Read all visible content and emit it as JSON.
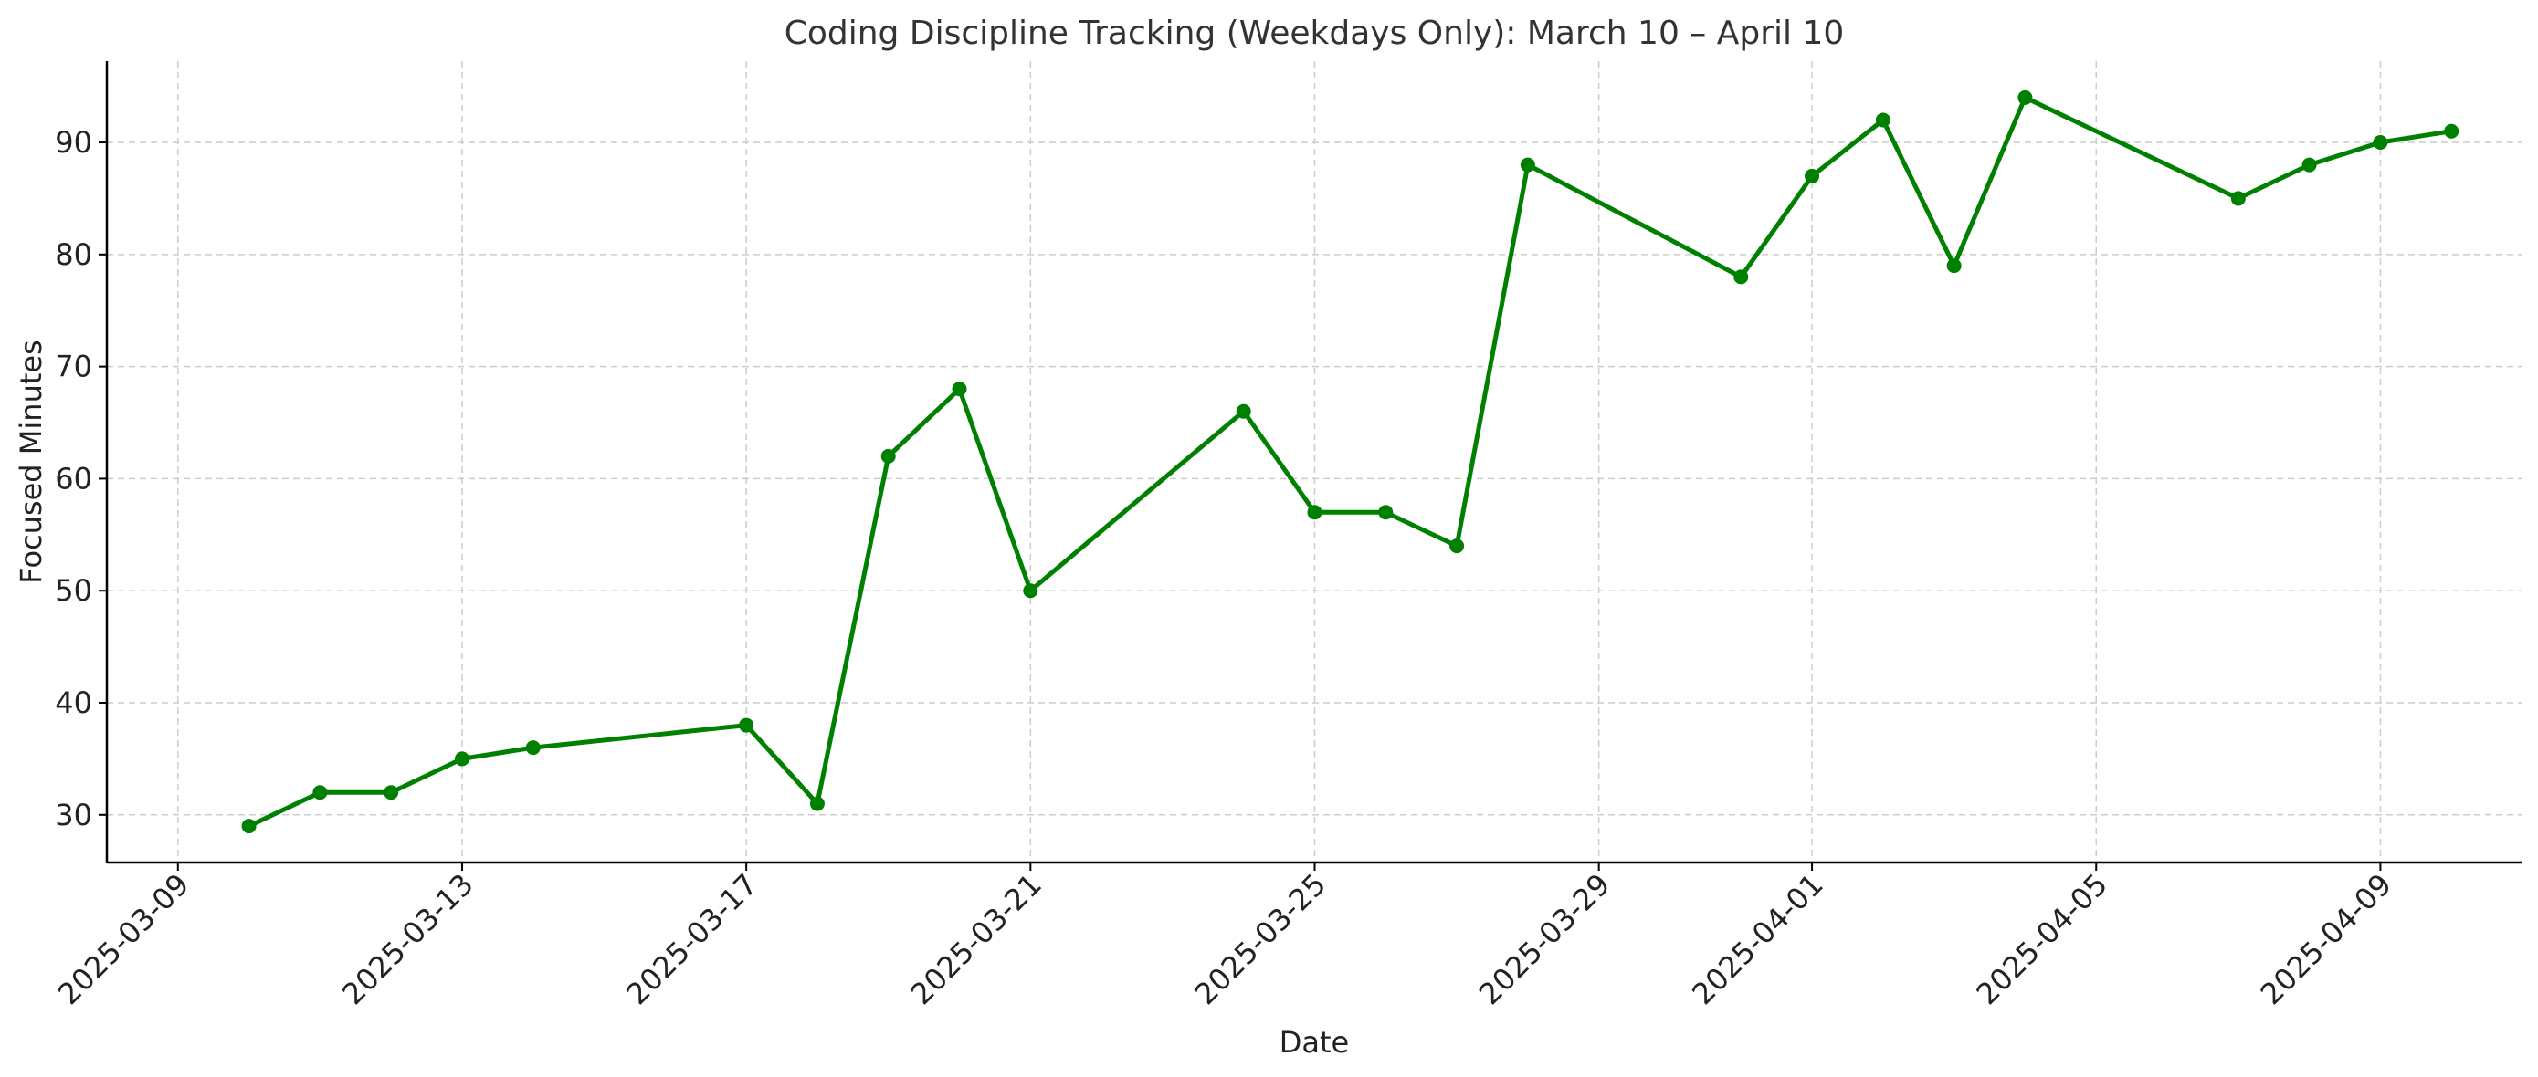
{
  "chart_data": {
    "type": "line",
    "title": "Coding Discipline Tracking (Weekdays Only): March 10 – April 10",
    "xlabel": "Date",
    "ylabel": "Focused Minutes",
    "x_ticks": [
      "2025-03-09",
      "2025-03-13",
      "2025-03-17",
      "2025-03-21",
      "2025-03-25",
      "2025-03-29",
      "2025-04-01",
      "2025-04-05",
      "2025-04-09"
    ],
    "y_ticks": [
      30,
      40,
      50,
      60,
      70,
      80,
      90
    ],
    "xlim": [
      "2025-03-08",
      "2025-04-11"
    ],
    "ylim": [
      25.75,
      97.25
    ],
    "grid": true,
    "line_color": "#008000",
    "series": [
      {
        "x": [
          "2025-03-10",
          "2025-03-11",
          "2025-03-12",
          "2025-03-13",
          "2025-03-14",
          "2025-03-17",
          "2025-03-18",
          "2025-03-19",
          "2025-03-20",
          "2025-03-21",
          "2025-03-24",
          "2025-03-25",
          "2025-03-26",
          "2025-03-27",
          "2025-03-28",
          "2025-03-31",
          "2025-04-01",
          "2025-04-02",
          "2025-04-03",
          "2025-04-04",
          "2025-04-07",
          "2025-04-08",
          "2025-04-09",
          "2025-04-10"
        ],
        "y": [
          29,
          32,
          32,
          35,
          36,
          38,
          31,
          62,
          68,
          50,
          66,
          57,
          57,
          54,
          88,
          78,
          87,
          92,
          79,
          94,
          85,
          88,
          90,
          91
        ]
      }
    ]
  }
}
